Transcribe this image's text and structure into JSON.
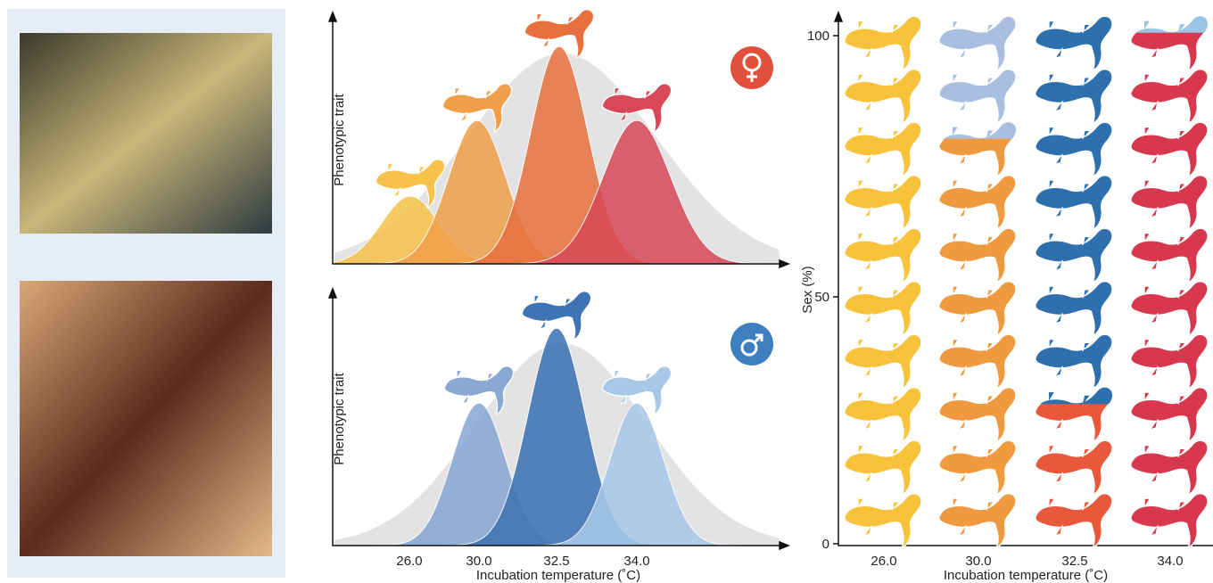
{
  "female_panel": {
    "y_axis_label": "Phenotypic trait"
  },
  "male_panel": {
    "y_axis_label": "Phenotypic trait",
    "x_ticks": [
      "26.0",
      "30.0",
      "32.5",
      "34.0"
    ],
    "x_axis_label": "Incubation temperature (˚C)"
  },
  "sex_panel": {
    "y_axis_label": "Sex (%)",
    "y_ticks": [
      "100",
      "50",
      "0"
    ],
    "x_ticks": [
      "26.0",
      "30.0",
      "32.5",
      "34.0"
    ],
    "x_axis_label": "Incubation temperature (˚C)"
  }
}
